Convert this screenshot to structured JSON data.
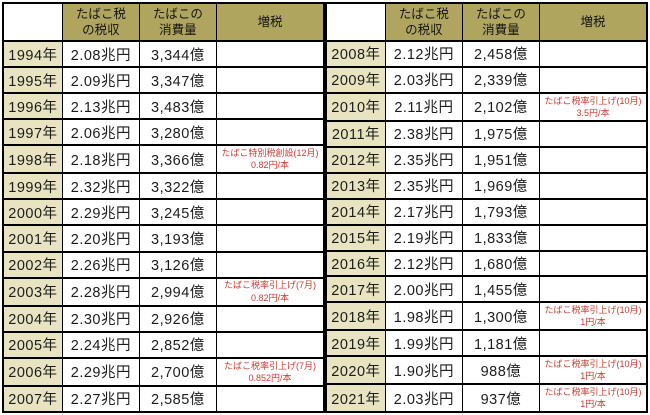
{
  "colors": {
    "header_bg": "#b0a55f",
    "year_column_bg": "#e8e3c0",
    "tax_increase_note_red": "#cc3a31",
    "border": "#000000",
    "text": "#1c1c1c",
    "background": "#ffffff"
  },
  "chart_data": {
    "type": "table",
    "header_display": {
      "year": "",
      "revenue": "たばこ税\nの税収",
      "consumption": "たばこの\n消費量",
      "note": "増税"
    },
    "columns": [
      "",
      "たばこ税の税収",
      "たばこの消費量",
      "増税"
    ],
    "left_rows": [
      {
        "year": "1994年",
        "revenue": "2.08兆円",
        "consumption": "3,344億",
        "note": ""
      },
      {
        "year": "1995年",
        "revenue": "2.09兆円",
        "consumption": "3,347億",
        "note": ""
      },
      {
        "year": "1996年",
        "revenue": "2.13兆円",
        "consumption": "3,483億",
        "note": ""
      },
      {
        "year": "1997年",
        "revenue": "2.06兆円",
        "consumption": "3,280億",
        "note": ""
      },
      {
        "year": "1998年",
        "revenue": "2.18兆円",
        "consumption": "3,366億",
        "note": "たばこ特別税創設(12月)\n0.82円/本"
      },
      {
        "year": "1999年",
        "revenue": "2.32兆円",
        "consumption": "3,322億",
        "note": ""
      },
      {
        "year": "2000年",
        "revenue": "2.29兆円",
        "consumption": "3,245億",
        "note": ""
      },
      {
        "year": "2001年",
        "revenue": "2.20兆円",
        "consumption": "3,193億",
        "note": ""
      },
      {
        "year": "2002年",
        "revenue": "2.26兆円",
        "consumption": "3,126億",
        "note": ""
      },
      {
        "year": "2003年",
        "revenue": "2.28兆円",
        "consumption": "2,994億",
        "note": "たばこ税率引上げ(7月)\n0.82円/本"
      },
      {
        "year": "2004年",
        "revenue": "2.30兆円",
        "consumption": "2,926億",
        "note": ""
      },
      {
        "year": "2005年",
        "revenue": "2.24兆円",
        "consumption": "2,852億",
        "note": ""
      },
      {
        "year": "2006年",
        "revenue": "2.29兆円",
        "consumption": "2,700億",
        "note": "たばこ税率引上げ(7月)\n0.852円/本"
      },
      {
        "year": "2007年",
        "revenue": "2.27兆円",
        "consumption": "2,585億",
        "note": ""
      }
    ],
    "right_rows": [
      {
        "year": "2008年",
        "revenue": "2.12兆円",
        "consumption": "2,458億",
        "note": ""
      },
      {
        "year": "2009年",
        "revenue": "2.03兆円",
        "consumption": "2,339億",
        "note": ""
      },
      {
        "year": "2010年",
        "revenue": "2.11兆円",
        "consumption": "2,102億",
        "note": "たばこ税率引上げ(10月)\n3.5円/本"
      },
      {
        "year": "2011年",
        "revenue": "2.38兆円",
        "consumption": "1,975億",
        "note": ""
      },
      {
        "year": "2012年",
        "revenue": "2.35兆円",
        "consumption": "1,951億",
        "note": ""
      },
      {
        "year": "2013年",
        "revenue": "2.35兆円",
        "consumption": "1,969億",
        "note": ""
      },
      {
        "year": "2014年",
        "revenue": "2.17兆円",
        "consumption": "1,793億",
        "note": ""
      },
      {
        "year": "2015年",
        "revenue": "2.19兆円",
        "consumption": "1,833億",
        "note": ""
      },
      {
        "year": "2016年",
        "revenue": "2.12兆円",
        "consumption": "1,680億",
        "note": ""
      },
      {
        "year": "2017年",
        "revenue": "2.00兆円",
        "consumption": "1,455億",
        "note": ""
      },
      {
        "year": "2018年",
        "revenue": "1.98兆円",
        "consumption": "1,300億",
        "note": "たばこ税率引上げ(10月)\n1円/本"
      },
      {
        "year": "2019年",
        "revenue": "1.99兆円",
        "consumption": "1,181億",
        "note": ""
      },
      {
        "year": "2020年",
        "revenue": "1.90兆円",
        "consumption": "988億",
        "note": "たばこ税率引上げ(10月)\n1円/本"
      },
      {
        "year": "2021年",
        "revenue": "2.03兆円",
        "consumption": "937億",
        "note": "たばこ税率引上げ(10月)\n1円/本"
      }
    ]
  }
}
